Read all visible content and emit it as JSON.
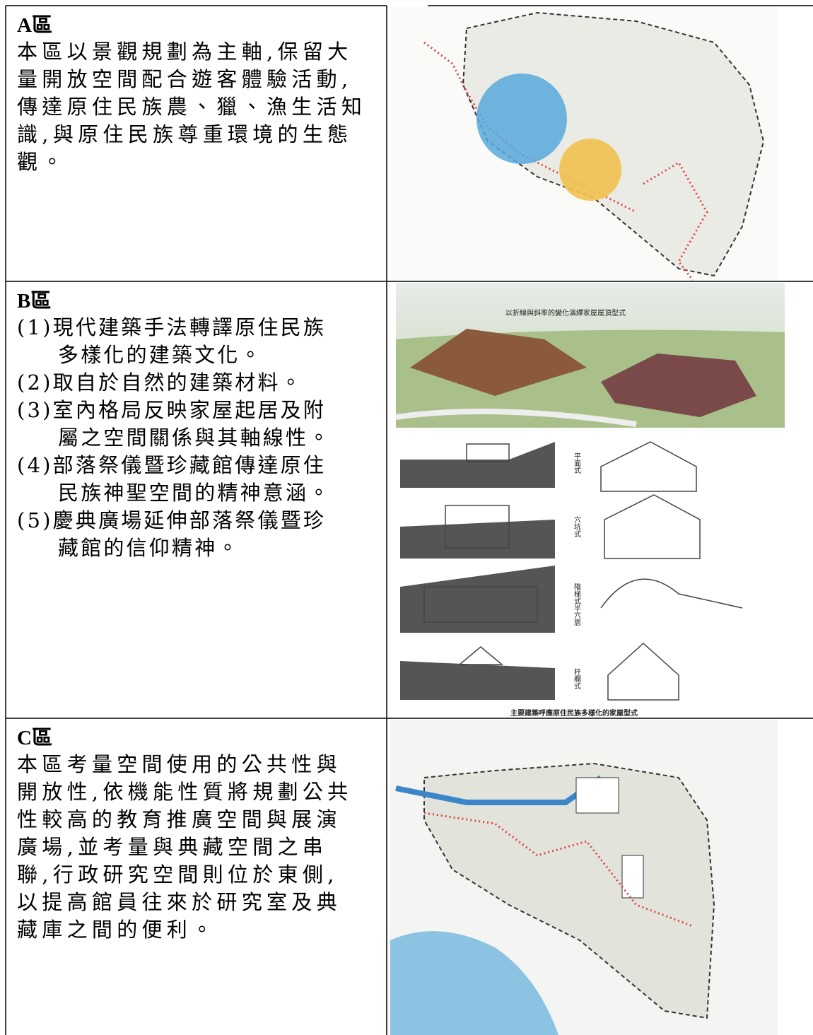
{
  "sections": [
    {
      "title": "A區",
      "lines": [
        "本區以景觀規劃為主軸,保留大",
        "量開放空間配合遊客體驗活動,",
        "傳達原住民族農、獵、漁生活知",
        "識,與原住民族尊重環境的生態",
        "觀。"
      ]
    },
    {
      "title": "B區",
      "items": [
        [
          "(1)現代建築手法轉譯原住民族",
          "多樣化的建築文化。"
        ],
        [
          "(2)取自於自然的建築材料。"
        ],
        [
          "(3)室內格局反映家屋起居及附",
          "屬之空間關係與其軸線性。"
        ],
        [
          "(4)部落祭儀暨珍藏館傳達原住",
          "民族神聖空間的精神意涵。"
        ],
        [
          "(5)慶典廣場延伸部落祭儀暨珍",
          "藏館的信仰精神。"
        ]
      ],
      "image": {
        "caption_top": "以折線與斜率的變化演繹家屋屋頂型式",
        "house_types": [
          "平面式",
          "穴坑式",
          "階梯式半穴居",
          "杆欄式"
        ],
        "caption_bottom": "主要建築呼應原住民族多樣化的家屋型式"
      }
    },
    {
      "title": "C區",
      "lines": [
        "本區考量空間使用的公共性與",
        "開放性,依機能性質將規劃公共",
        "性較高的教育推廣空間與展演",
        "廣場,並考量與典藏空間之串",
        "聯,行政研究空間則位於東側,",
        "以提高館員往來於研究室及典",
        "藏庫之間的便利。"
      ]
    }
  ]
}
